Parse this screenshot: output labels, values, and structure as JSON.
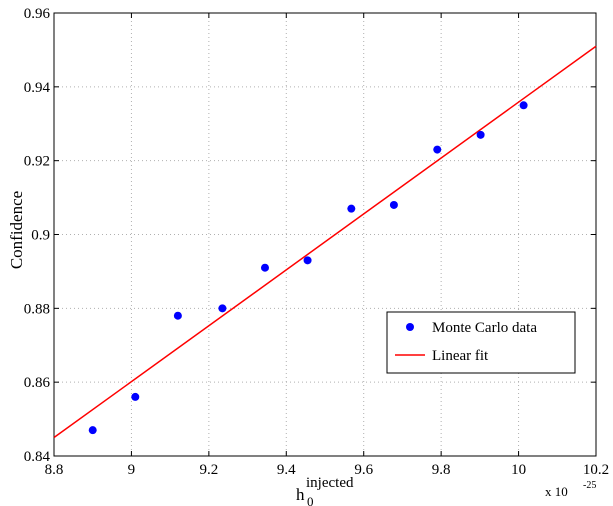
{
  "chart_data": {
    "type": "scatter",
    "xlabel": "h",
    "xlabel_sub": "0",
    "xlabel_sup": "injected",
    "ylabel": "Confidence",
    "x_multiplier": "x 10",
    "x_multiplier_exp": "-25",
    "xlim": [
      8.8,
      10.2
    ],
    "ylim": [
      0.84,
      0.96
    ],
    "grid": true,
    "legend_position": "bottom-right",
    "x_ticks": [
      8.8,
      9,
      9.2,
      9.4,
      9.6,
      9.8,
      10,
      10.2
    ],
    "x_tick_labels": [
      "8.8",
      "9",
      "9.2",
      "9.4",
      "9.6",
      "9.8",
      "10",
      "10.2"
    ],
    "y_ticks": [
      0.84,
      0.86,
      0.88,
      0.9,
      0.92,
      0.94,
      0.96
    ],
    "y_tick_labels": [
      "0.84",
      "0.86",
      "0.88",
      "0.9",
      "0.92",
      "0.94",
      "0.96"
    ],
    "series": [
      {
        "name": "Monte Carlo data",
        "kind": "scatter",
        "color": "#0000ff",
        "x": [
          8.9,
          9.01,
          9.12,
          9.235,
          9.345,
          9.455,
          9.568,
          9.678,
          9.79,
          9.902,
          10.013
        ],
        "y": [
          0.847,
          0.856,
          0.878,
          0.88,
          0.891,
          0.893,
          0.907,
          0.908,
          0.923,
          0.927,
          0.935
        ]
      },
      {
        "name": "Linear fit",
        "kind": "line",
        "color": "#ff0000",
        "x": [
          8.8,
          10.2
        ],
        "y": [
          0.845,
          0.951
        ]
      }
    ]
  }
}
